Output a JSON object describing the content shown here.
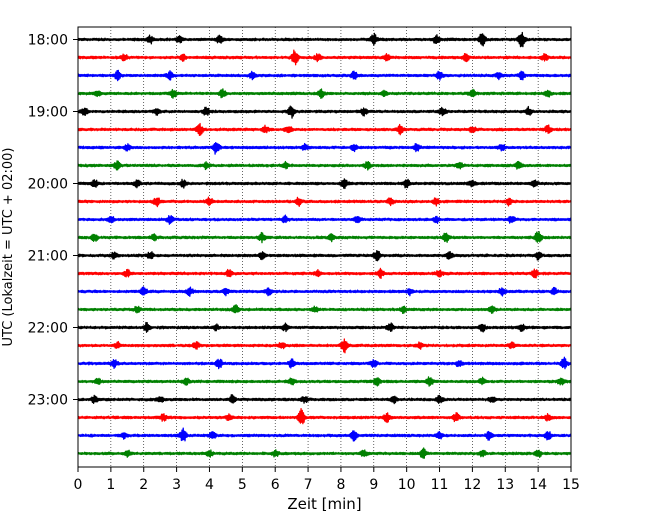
{
  "chart_data": {
    "type": "line",
    "title": "",
    "xlabel": "Zeit  [min]",
    "ylabel": "UTC (Lokalzeit = UTC + 02:00)",
    "xlim": [
      0,
      15
    ],
    "x_ticks": [
      "0",
      "1",
      "2",
      "3",
      "4",
      "5",
      "6",
      "7",
      "8",
      "9",
      "10",
      "11",
      "12",
      "13",
      "14",
      "15"
    ],
    "y_ticks": [
      "18:00",
      "19:00",
      "20:00",
      "21:00",
      "22:00",
      "23:00"
    ],
    "grid": "vertical dotted",
    "trace_interval_min": 15,
    "colors": [
      "#000000",
      "#ff0000",
      "#0000ff",
      "#008000"
    ],
    "series": [
      {
        "start": "18:00",
        "color": "#000000",
        "events": [
          [
            2.2,
            1.5
          ],
          [
            3.1,
            1.2
          ],
          [
            4.3,
            1.4
          ],
          [
            9.0,
            2.2
          ],
          [
            10.9,
            2.0
          ],
          [
            12.3,
            2.8
          ],
          [
            13.5,
            3.2
          ]
        ]
      },
      {
        "start": "18:15",
        "color": "#ff0000",
        "events": [
          [
            1.4,
            1.5
          ],
          [
            3.2,
            1.2
          ],
          [
            6.6,
            3.0
          ],
          [
            7.3,
            1.4
          ],
          [
            9.4,
            1.2
          ],
          [
            11.8,
            1.6
          ],
          [
            14.2,
            1.5
          ]
        ]
      },
      {
        "start": "18:30",
        "color": "#0000ff",
        "events": [
          [
            1.2,
            1.8
          ],
          [
            2.8,
            1.5
          ],
          [
            5.3,
            1.3
          ],
          [
            8.4,
            1.6
          ],
          [
            11.0,
            1.6
          ],
          [
            12.8,
            1.2
          ],
          [
            13.5,
            1.5
          ]
        ]
      },
      {
        "start": "18:45",
        "color": "#008000",
        "events": [
          [
            0.6,
            1.2
          ],
          [
            2.9,
            1.5
          ],
          [
            4.4,
            1.8
          ],
          [
            7.4,
            1.6
          ],
          [
            9.3,
            1.2
          ],
          [
            12.0,
            1.4
          ],
          [
            14.3,
            1.3
          ]
        ]
      },
      {
        "start": "19:00",
        "color": "#000000",
        "events": [
          [
            0.2,
            1.4
          ],
          [
            2.4,
            1.2
          ],
          [
            3.9,
            1.5
          ],
          [
            6.5,
            2.4
          ],
          [
            8.7,
            1.4
          ],
          [
            11.1,
            1.5
          ],
          [
            13.7,
            1.6
          ]
        ]
      },
      {
        "start": "19:15",
        "color": "#ff0000",
        "events": [
          [
            3.7,
            2.2
          ],
          [
            5.7,
            1.4
          ],
          [
            6.4,
            1.6
          ],
          [
            9.8,
            1.8
          ],
          [
            12.0,
            1.3
          ],
          [
            14.3,
            1.5
          ]
        ]
      },
      {
        "start": "19:30",
        "color": "#0000ff",
        "events": [
          [
            1.5,
            1.3
          ],
          [
            4.2,
            2.6
          ],
          [
            6.9,
            1.2
          ],
          [
            8.4,
            1.4
          ],
          [
            10.3,
            1.5
          ],
          [
            12.9,
            1.3
          ]
        ]
      },
      {
        "start": "19:45",
        "color": "#008000",
        "events": [
          [
            1.2,
            1.8
          ],
          [
            3.9,
            1.3
          ],
          [
            6.3,
            1.4
          ],
          [
            8.8,
            1.4
          ],
          [
            11.6,
            1.3
          ],
          [
            13.4,
            1.4
          ]
        ]
      },
      {
        "start": "20:00",
        "color": "#000000",
        "events": [
          [
            0.5,
            1.4
          ],
          [
            1.8,
            1.4
          ],
          [
            3.2,
            1.5
          ],
          [
            8.1,
            2.2
          ],
          [
            10.0,
            1.6
          ],
          [
            12.0,
            1.4
          ],
          [
            13.9,
            1.4
          ]
        ]
      },
      {
        "start": "20:15",
        "color": "#ff0000",
        "events": [
          [
            2.4,
            1.8
          ],
          [
            4.0,
            1.5
          ],
          [
            6.7,
            1.8
          ],
          [
            9.5,
            1.3
          ],
          [
            10.9,
            1.6
          ],
          [
            13.1,
            1.4
          ]
        ]
      },
      {
        "start": "20:30",
        "color": "#0000ff",
        "events": [
          [
            1.0,
            1.2
          ],
          [
            2.8,
            1.6
          ],
          [
            6.3,
            1.5
          ],
          [
            8.5,
            1.3
          ],
          [
            10.9,
            1.4
          ],
          [
            13.2,
            1.6
          ]
        ]
      },
      {
        "start": "20:45",
        "color": "#008000",
        "events": [
          [
            0.5,
            1.6
          ],
          [
            2.3,
            1.2
          ],
          [
            5.6,
            1.8
          ],
          [
            7.7,
            1.3
          ],
          [
            11.2,
            1.8
          ],
          [
            14.0,
            2.6
          ]
        ]
      },
      {
        "start": "21:00",
        "color": "#000000",
        "events": [
          [
            1.1,
            1.3
          ],
          [
            2.2,
            1.4
          ],
          [
            5.6,
            1.4
          ],
          [
            9.1,
            2.0
          ],
          [
            11.3,
            1.4
          ],
          [
            14.0,
            1.6
          ]
        ]
      },
      {
        "start": "21:15",
        "color": "#ff0000",
        "events": [
          [
            1.5,
            1.4
          ],
          [
            4.6,
            1.8
          ],
          [
            7.3,
            1.4
          ],
          [
            9.2,
            1.8
          ],
          [
            11.0,
            1.4
          ],
          [
            13.9,
            1.6
          ]
        ]
      },
      {
        "start": "21:30",
        "color": "#0000ff",
        "events": [
          [
            2.0,
            1.6
          ],
          [
            3.4,
            1.6
          ],
          [
            4.5,
            1.3
          ],
          [
            5.8,
            1.4
          ],
          [
            10.1,
            1.3
          ],
          [
            12.9,
            1.4
          ],
          [
            14.5,
            1.4
          ]
        ]
      },
      {
        "start": "21:45",
        "color": "#008000",
        "events": [
          [
            1.8,
            1.2
          ],
          [
            4.8,
            1.6
          ],
          [
            7.2,
            1.2
          ],
          [
            9.9,
            1.3
          ],
          [
            12.6,
            1.2
          ]
        ]
      },
      {
        "start": "22:00",
        "color": "#000000",
        "events": [
          [
            2.1,
            2.0
          ],
          [
            4.2,
            1.2
          ],
          [
            6.3,
            1.4
          ],
          [
            9.5,
            1.6
          ],
          [
            12.3,
            1.6
          ],
          [
            13.5,
            1.3
          ]
        ]
      },
      {
        "start": "22:15",
        "color": "#ff0000",
        "events": [
          [
            1.2,
            1.2
          ],
          [
            3.6,
            1.3
          ],
          [
            6.2,
            1.4
          ],
          [
            8.1,
            3.0
          ],
          [
            10.4,
            1.3
          ],
          [
            13.2,
            1.3
          ]
        ]
      },
      {
        "start": "22:30",
        "color": "#0000ff",
        "events": [
          [
            1.1,
            1.6
          ],
          [
            4.3,
            1.8
          ],
          [
            6.5,
            1.6
          ],
          [
            9.0,
            1.4
          ],
          [
            11.6,
            1.4
          ],
          [
            14.8,
            2.2
          ]
        ]
      },
      {
        "start": "22:45",
        "color": "#008000",
        "events": [
          [
            0.6,
            1.2
          ],
          [
            3.3,
            1.3
          ],
          [
            6.5,
            1.5
          ],
          [
            9.1,
            1.6
          ],
          [
            10.7,
            1.6
          ],
          [
            12.3,
            1.4
          ],
          [
            14.7,
            1.5
          ]
        ]
      },
      {
        "start": "23:00",
        "color": "#000000",
        "events": [
          [
            0.5,
            1.3
          ],
          [
            2.5,
            1.2
          ],
          [
            4.7,
            1.8
          ],
          [
            6.9,
            1.3
          ],
          [
            9.6,
            1.4
          ],
          [
            11.0,
            1.4
          ],
          [
            12.6,
            1.3
          ]
        ]
      },
      {
        "start": "23:15",
        "color": "#ff0000",
        "events": [
          [
            2.6,
            1.4
          ],
          [
            4.6,
            1.3
          ],
          [
            6.8,
            3.4
          ],
          [
            9.4,
            1.6
          ],
          [
            11.5,
            2.0
          ],
          [
            14.3,
            1.3
          ]
        ]
      },
      {
        "start": "23:30",
        "color": "#0000ff",
        "events": [
          [
            1.4,
            1.2
          ],
          [
            3.2,
            2.8
          ],
          [
            4.1,
            1.4
          ],
          [
            8.4,
            2.0
          ],
          [
            11.0,
            1.4
          ],
          [
            12.5,
            1.6
          ],
          [
            14.3,
            2.0
          ]
        ]
      },
      {
        "start": "23:45",
        "color": "#008000",
        "events": [
          [
            1.5,
            1.3
          ],
          [
            4.0,
            1.2
          ],
          [
            6.0,
            1.4
          ],
          [
            8.7,
            1.4
          ],
          [
            10.5,
            2.0
          ],
          [
            12.3,
            1.3
          ],
          [
            14.0,
            1.5
          ]
        ]
      }
    ]
  }
}
